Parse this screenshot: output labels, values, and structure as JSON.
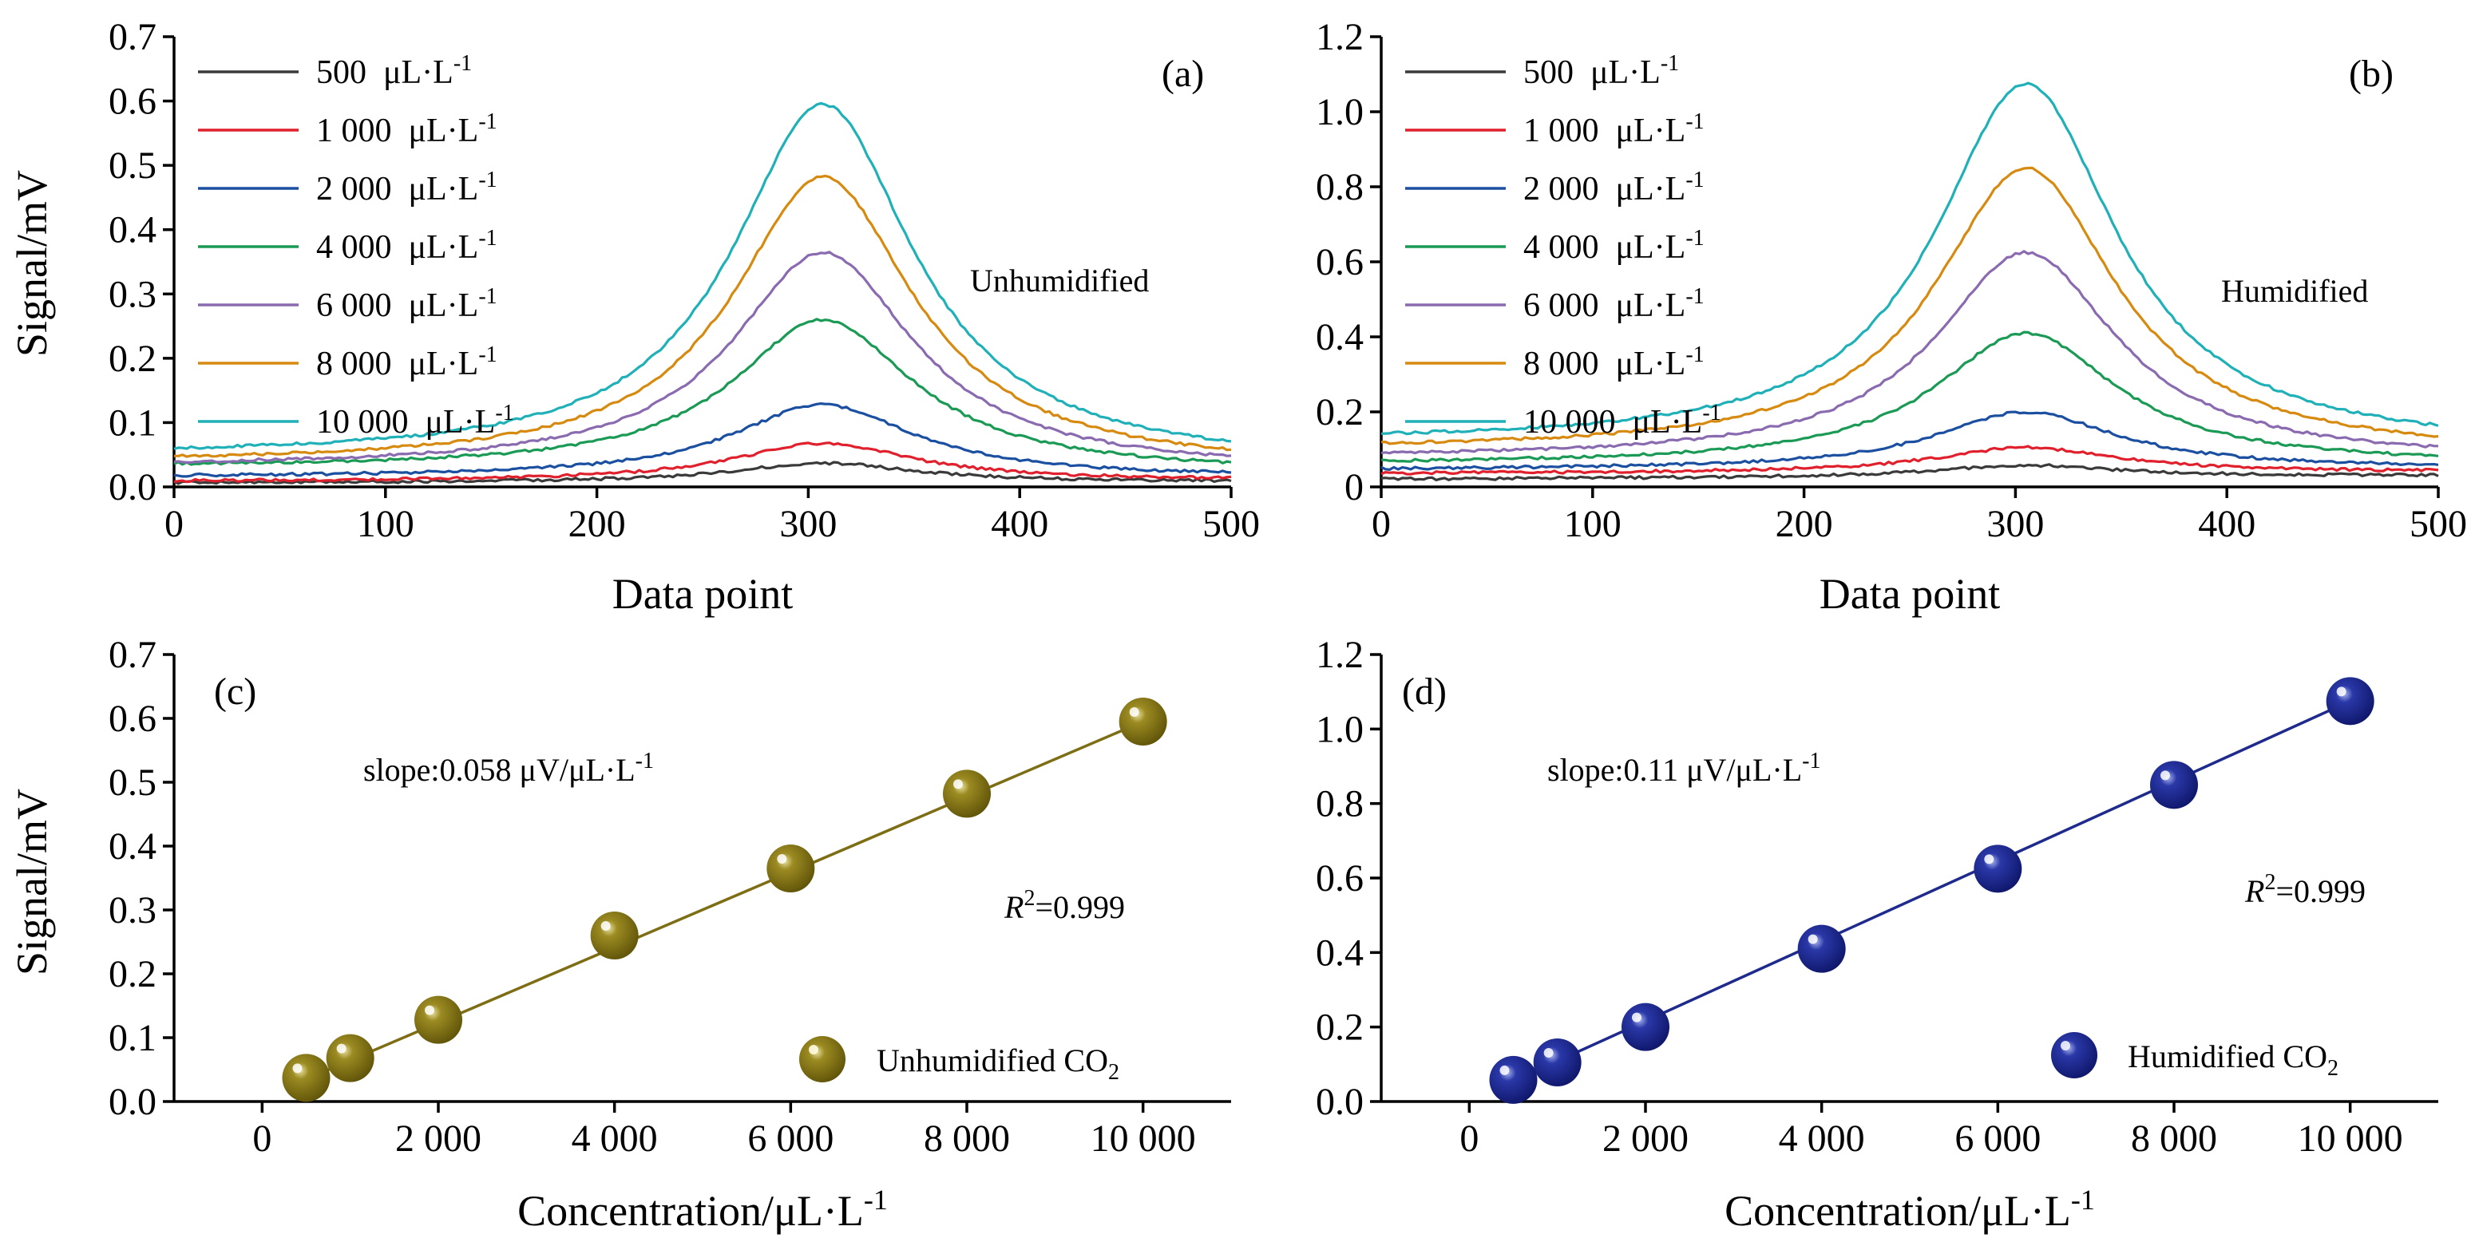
{
  "figure": {
    "panels": [
      {
        "id": "a",
        "tag": "(a)",
        "annotation": "Unhumidified",
        "xlabel": "Data point",
        "ylabel": "Signal/mV",
        "xticks": [
          "0",
          "100",
          "200",
          "300",
          "400",
          "500"
        ],
        "yticks": [
          "0.0",
          "0.1",
          "0.2",
          "0.3",
          "0.4",
          "0.5",
          "0.6",
          "0.7"
        ]
      },
      {
        "id": "b",
        "tag": "(b)",
        "annotation": "Humidified",
        "xlabel": "Data point",
        "ylabel": "",
        "xticks": [
          "0",
          "100",
          "200",
          "300",
          "400",
          "500"
        ],
        "yticks": [
          "0",
          "0.2",
          "0.4",
          "0.6",
          "0.8",
          "1.0",
          "1.2"
        ]
      },
      {
        "id": "c",
        "tag": "(c)",
        "slope_text": "slope:0.058 μV/μL·L",
        "slope_sup": "-1",
        "r2_main": "R",
        "r2_sup": "2",
        "r2_value": "=0.999",
        "legend_main": "Unhumidified CO",
        "legend_sub": "2",
        "xlabel_main": "Concentration/μL·L",
        "xlabel_sup": "-1",
        "ylabel": "Signal/mV",
        "xticks": [
          "0",
          "2 000",
          "4 000",
          "6 000",
          "8 000",
          "10 000"
        ],
        "yticks": [
          "0.0",
          "0.1",
          "0.2",
          "0.3",
          "0.4",
          "0.5",
          "0.6",
          "0.7"
        ]
      },
      {
        "id": "d",
        "tag": "(d)",
        "slope_text": "slope:0.11 μV/μL·L",
        "slope_sup": "-1",
        "r2_main": "R",
        "r2_sup": "2",
        "r2_value": "=0.999",
        "legend_main": "Humidified CO",
        "legend_sub": "2",
        "xlabel_main": "Concentration/μL·L",
        "xlabel_sup": "-1",
        "ylabel": "",
        "xticks": [
          "0",
          "2 000",
          "4 000",
          "6 000",
          "8 000",
          "10 000"
        ],
        "yticks": [
          "0.0",
          "0.2",
          "0.4",
          "0.6",
          "0.8",
          "1.0",
          "1.2"
        ]
      }
    ]
  },
  "chart_data": [
    {
      "type": "line",
      "panel": "a",
      "title": "",
      "annotation": "Unhumidified",
      "xlabel": "Data point",
      "ylabel": "Signal/mV",
      "xlim": [
        0,
        500
      ],
      "ylim": [
        0,
        0.7
      ],
      "peak_x": 307,
      "legend_placement": "top-left",
      "legend_unit": "μL·L",
      "legend_unit_sup": "-1",
      "series": [
        {
          "name": "500",
          "color": "#3a3a3a",
          "baseline_start": 0.006,
          "baseline_end": 0.008,
          "peak": 0.037
        },
        {
          "name": "1 000",
          "color": "#e0202c",
          "baseline_start": 0.008,
          "baseline_end": 0.01,
          "peak": 0.068
        },
        {
          "name": "2 000",
          "color": "#1b4fa0",
          "baseline_start": 0.015,
          "baseline_end": 0.015,
          "peak": 0.128
        },
        {
          "name": "4 000",
          "color": "#1a9a55",
          "baseline_start": 0.03,
          "baseline_end": 0.022,
          "peak": 0.26
        },
        {
          "name": "6 000",
          "color": "#8a6bb0",
          "baseline_start": 0.03,
          "baseline_end": 0.025,
          "peak": 0.365
        },
        {
          "name": "8 000",
          "color": "#d68a10",
          "baseline_start": 0.035,
          "baseline_end": 0.028,
          "peak": 0.482
        },
        {
          "name": "10 000",
          "color": "#1fb0b8",
          "baseline_start": 0.045,
          "baseline_end": 0.033,
          "peak": 0.595
        }
      ]
    },
    {
      "type": "line",
      "panel": "b",
      "title": "",
      "annotation": "Humidified",
      "xlabel": "Data point",
      "ylabel": "",
      "xlim": [
        0,
        500
      ],
      "ylim": [
        0,
        1.2
      ],
      "peak_x": 305,
      "legend_placement": "top-left",
      "legend_unit": "μL·L",
      "legend_unit_sup": "-1",
      "series": [
        {
          "name": "500",
          "color": "#3a3a3a",
          "baseline_start": 0.02,
          "baseline_end": 0.03,
          "peak": 0.058
        },
        {
          "name": "1 000",
          "color": "#e0202c",
          "baseline_start": 0.035,
          "baseline_end": 0.04,
          "peak": 0.105
        },
        {
          "name": "2 000",
          "color": "#1b4fa0",
          "baseline_start": 0.045,
          "baseline_end": 0.05,
          "peak": 0.2
        },
        {
          "name": "4 000",
          "color": "#1a9a55",
          "baseline_start": 0.06,
          "baseline_end": 0.06,
          "peak": 0.41
        },
        {
          "name": "6 000",
          "color": "#8a6bb0",
          "baseline_start": 0.075,
          "baseline_end": 0.07,
          "peak": 0.625
        },
        {
          "name": "8 000",
          "color": "#d68a10",
          "baseline_start": 0.095,
          "baseline_end": 0.085,
          "peak": 0.85
        },
        {
          "name": "10 000",
          "color": "#1fb0b8",
          "baseline_start": 0.115,
          "baseline_end": 0.1,
          "peak": 1.075
        }
      ]
    },
    {
      "type": "scatter",
      "panel": "c",
      "title": "",
      "xlabel": "Concentration/μL·L-1",
      "ylabel": "Signal/mV",
      "xlim": [
        -1000,
        11000
      ],
      "ylim": [
        0,
        0.7
      ],
      "color": "#7d6d14",
      "legend_placement": "bottom-right",
      "series": [
        {
          "name": "Unhumidified CO2",
          "x": [
            500,
            1000,
            2000,
            4000,
            6000,
            8000,
            10000
          ],
          "y": [
            0.037,
            0.068,
            0.128,
            0.26,
            0.365,
            0.482,
            0.595
          ]
        }
      ],
      "fit": {
        "slope": 0.058,
        "r2": 0.999,
        "x": [
          500,
          10000
        ],
        "y": [
          0.035,
          0.595
        ]
      }
    },
    {
      "type": "scatter",
      "panel": "d",
      "title": "",
      "xlabel": "Concentration/μL·L-1",
      "ylabel": "",
      "xlim": [
        -1000,
        11000
      ],
      "ylim": [
        0,
        1.2
      ],
      "color": "#1e2a8c",
      "legend_placement": "bottom-right",
      "series": [
        {
          "name": "Humidified CO2",
          "x": [
            500,
            1000,
            2000,
            4000,
            6000,
            8000,
            10000
          ],
          "y": [
            0.058,
            0.105,
            0.2,
            0.41,
            0.625,
            0.85,
            1.075
          ]
        }
      ],
      "fit": {
        "slope": 0.11,
        "r2": 0.999,
        "x": [
          500,
          10000
        ],
        "y": [
          0.055,
          1.075
        ]
      }
    }
  ]
}
